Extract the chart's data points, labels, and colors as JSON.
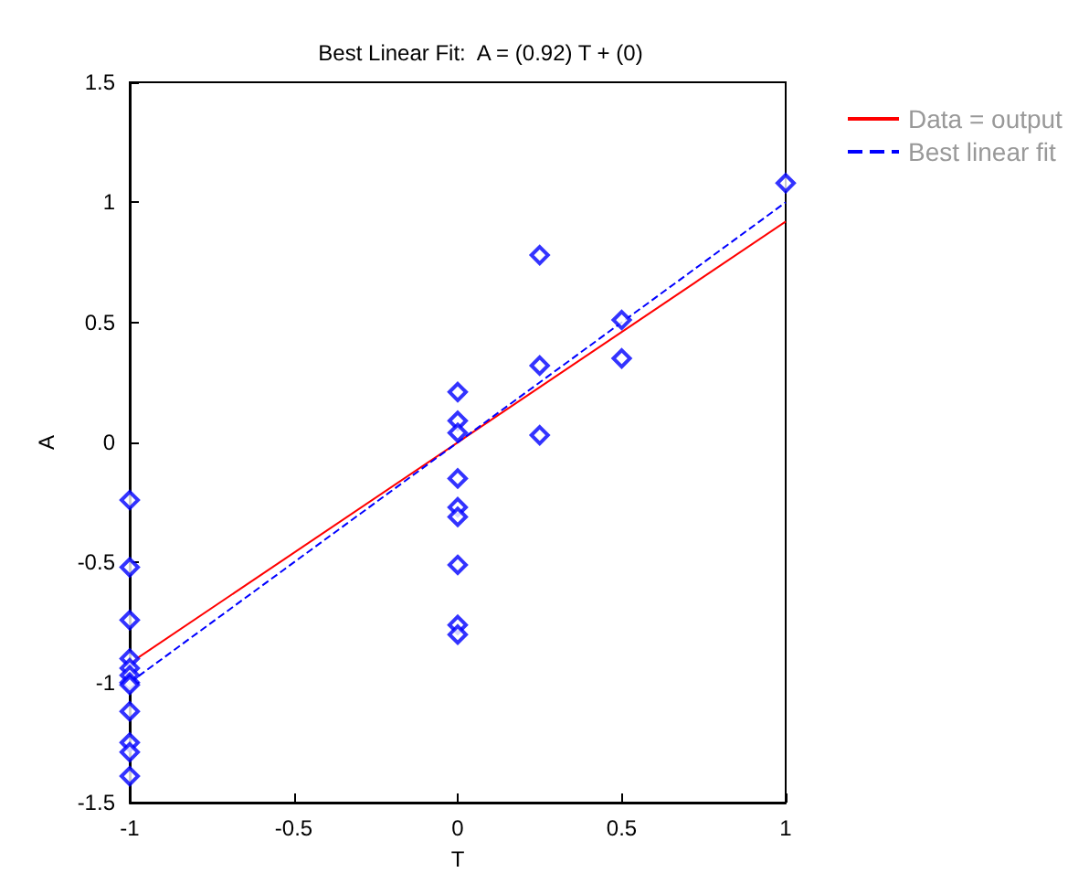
{
  "chart_data": {
    "type": "scatter",
    "title": "Best Linear Fit:  A = (0.92) T + (0)",
    "xlabel": "T",
    "ylabel": "A",
    "xlim": [
      -1,
      1
    ],
    "xticks": [
      -1,
      -0.5,
      0,
      0.5,
      1
    ],
    "ylim": [
      -1.5,
      1.5
    ],
    "yticks": [
      -1.5,
      -1,
      -0.5,
      0,
      0.5,
      1,
      1.5
    ],
    "grid": false,
    "legend": "top right",
    "series": [
      {
        "color": "#0000ff",
        "marker": "diamond",
        "x": [
          -1,
          -1,
          -1,
          -1,
          -1,
          -1,
          -1,
          -1,
          -1,
          -1,
          -1,
          -1,
          0,
          0,
          0,
          0,
          0,
          0,
          0,
          0,
          0,
          0.25,
          0.25,
          0.25,
          0.5,
          0.5,
          1
        ],
        "values": [
          -0.24,
          -0.52,
          -0.74,
          -0.9,
          -0.94,
          -0.97,
          -1.0,
          -1.01,
          -1.12,
          -1.25,
          -1.29,
          -1.39,
          0.21,
          0.09,
          0.04,
          -0.15,
          -0.27,
          -0.31,
          -0.51,
          -0.76,
          -0.8,
          0.78,
          0.32,
          0.03,
          0.51,
          0.35,
          1.08
        ]
      },
      {
        "type": "line",
        "name": "Data = output",
        "color": "#ff0000",
        "line_style": "solid",
        "marker": "none",
        "x": [
          -1,
          1
        ],
        "values": [
          -0.92,
          0.92
        ]
      },
      {
        "type": "line",
        "name": "Best linear fit",
        "color": "#0000ff",
        "line_style": "dashed",
        "marker": "none",
        "x": [
          -1,
          1
        ],
        "values": [
          -1,
          1
        ]
      }
    ]
  }
}
